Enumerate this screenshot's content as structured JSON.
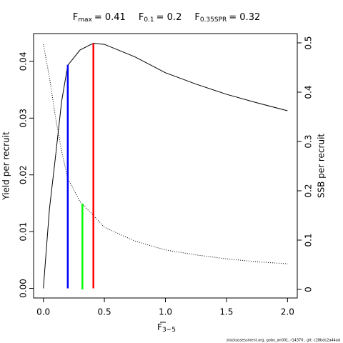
{
  "chart_data": {
    "type": "line",
    "markers": [
      {
        "name": "F",
        "sub": "max",
        "label": "= 0.41",
        "x": 0.41,
        "y": 0.0432,
        "axis": "y",
        "color": "#ff0000"
      },
      {
        "name": "F",
        "sub": "0.1",
        "label": "= 0.2",
        "x": 0.2,
        "y": 0.0394,
        "axis": "y",
        "color": "#0000ff"
      },
      {
        "name": "F",
        "sub": "0.35SPR",
        "label": "= 0.32",
        "x": 0.32,
        "y": 0.174,
        "axis": "y2",
        "color": "#00ff00"
      }
    ],
    "xlabel": "F",
    "xlabel_sub": "3−5",
    "ylabel": "Yield per recruit",
    "y2label": "SSB per recruit",
    "footer": "stockassessment.org, goby_an001, r14370 , git: c28bdc2a44ad",
    "x": [
      0,
      0.05,
      0.1,
      0.15,
      0.2,
      0.3,
      0.41,
      0.5,
      0.75,
      1.0,
      1.25,
      1.5,
      1.75,
      2.0
    ],
    "series": [
      {
        "name": "Yield per recruit",
        "color": "#000000",
        "dash": "solid",
        "values": [
          0,
          0.014,
          0.0233,
          0.033,
          0.0393,
          0.042,
          0.0432,
          0.043,
          0.0408,
          0.038,
          0.036,
          0.0342,
          0.0327,
          0.0313
        ]
      },
      {
        "name": "SSB per recruit",
        "color": "#000000",
        "dash": "dotted",
        "axis": "y2",
        "values": [
          0.497,
          0.43,
          0.348,
          0.28,
          0.225,
          0.178,
          0.15,
          0.126,
          0.098,
          0.08,
          0.07,
          0.062,
          0.056,
          0.052
        ]
      }
    ],
    "xlim": [
      -0.08,
      2.08
    ],
    "xticks": [
      {
        "value": 0,
        "label": "0.0"
      },
      {
        "value": 0.5,
        "label": "0.5"
      },
      {
        "value": 1,
        "label": "1.0"
      },
      {
        "value": 1.5,
        "label": "1.5"
      },
      {
        "value": 2,
        "label": "2.0"
      }
    ],
    "ylim": [
      -0.0017,
      0.0449
    ],
    "yticks": [
      {
        "value": 0,
        "label": "0.00"
      },
      0.01,
      0.02,
      0.03,
      0.04
    ],
    "y2lim": [
      -0.0174,
      0.5188
    ],
    "y2ticks": [
      0,
      0.1,
      0.2,
      0.3,
      0.4,
      0.5
    ]
  }
}
